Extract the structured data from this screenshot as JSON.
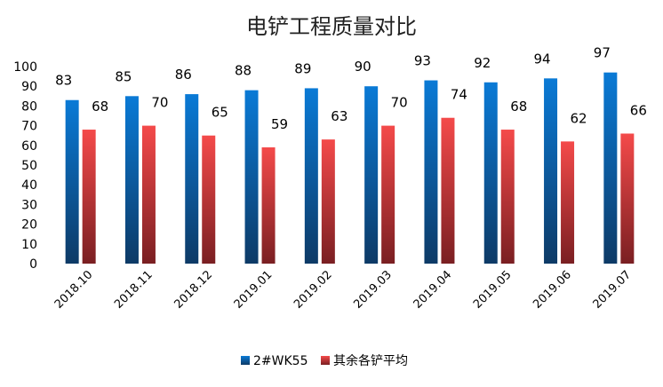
{
  "chart_data": {
    "type": "bar",
    "title": "电铲工程质量对比",
    "categories": [
      "2018.10",
      "2018.11",
      "2018.12",
      "2019.01",
      "2019.02",
      "2019.03",
      "2019.04",
      "2019.05",
      "2019.06",
      "2019.07"
    ],
    "series": [
      {
        "name": "2#WK55",
        "values": [
          83,
          85,
          86,
          88,
          89,
          90,
          93,
          92,
          94,
          97
        ],
        "color": "#0b66b7"
      },
      {
        "name": "其余各铲平均",
        "values": [
          68,
          70,
          65,
          59,
          63,
          70,
          74,
          68,
          62,
          66
        ],
        "color": "#e63b3e"
      }
    ],
    "ylim": [
      0,
      100
    ],
    "yticks": [
      0,
      10,
      20,
      30,
      40,
      50,
      60,
      70,
      80,
      90,
      100
    ],
    "grid": false,
    "legend": "bottom"
  }
}
